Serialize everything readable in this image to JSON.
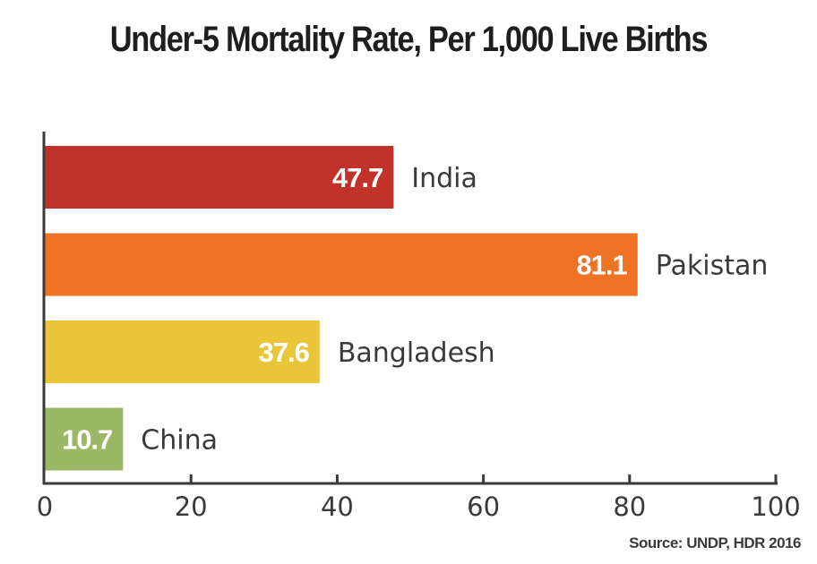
{
  "chart_data": {
    "type": "bar",
    "orientation": "horizontal",
    "title": "Under-5 Mortality Rate, Per 1,000 Live Births",
    "categories": [
      "India",
      "Pakistan",
      "Bangladesh",
      "China"
    ],
    "values": [
      47.7,
      81.1,
      37.6,
      10.7
    ],
    "value_labels": [
      "47.7",
      "81.1",
      "37.6",
      "10.7"
    ],
    "colors": [
      "#c0322a",
      "#f07224",
      "#e9c53a",
      "#9ab865"
    ],
    "xlabel": "",
    "ylabel": "",
    "xlim": [
      0,
      100
    ],
    "xticks": [
      0,
      20,
      40,
      60,
      80,
      100
    ],
    "xtick_labels": [
      "0",
      "20",
      "40",
      "60",
      "80",
      "100"
    ],
    "grid": false,
    "legend": "none",
    "source": "Source: UNDP, HDR 2016"
  }
}
